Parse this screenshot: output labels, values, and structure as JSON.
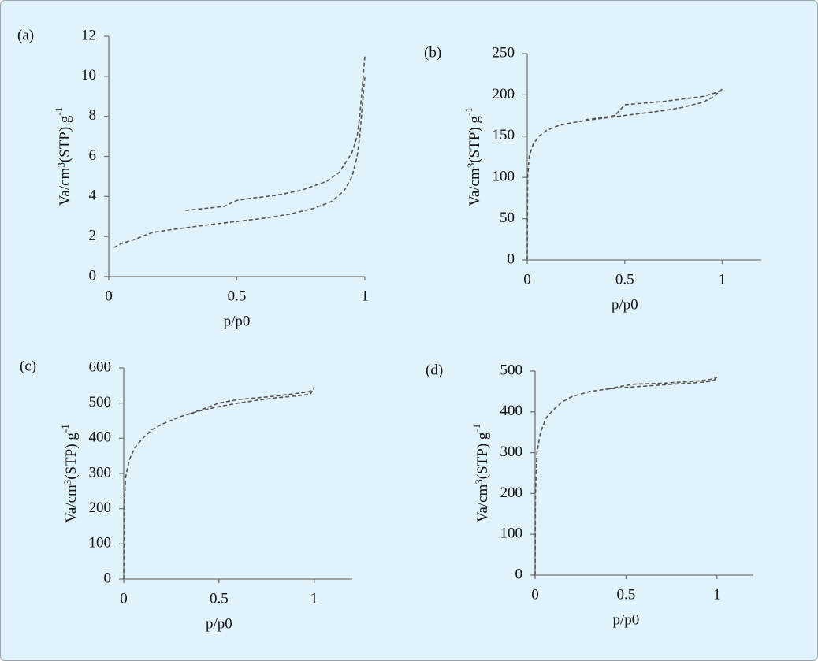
{
  "chart_data": [
    {
      "type": "line",
      "panel_label": "(a)",
      "y_label": [
        "Va/cm",
        "3",
        "(STP) g",
        "-1"
      ],
      "x_label": "p/p0",
      "xlim": [
        0,
        1
      ],
      "xticks": [
        0,
        0.5,
        1
      ],
      "ylim": [
        0,
        12
      ],
      "yticks": [
        0,
        2,
        4,
        6,
        8,
        10,
        12
      ],
      "series": [
        {
          "color": "#555555",
          "x": [
            0.02,
            0.05,
            0.1,
            0.17,
            0.25,
            0.4,
            0.5,
            0.6,
            0.7,
            0.8,
            0.87,
            0.92,
            0.95,
            0.97,
            0.98,
            0.99,
            1.0
          ],
          "values": [
            1.45,
            1.65,
            1.85,
            2.2,
            2.35,
            2.6,
            2.75,
            2.9,
            3.1,
            3.4,
            3.75,
            4.3,
            5.0,
            6.0,
            7.0,
            8.5,
            10
          ]
        },
        {
          "color": "#555555",
          "x": [
            0.3,
            0.45,
            0.5,
            0.55,
            0.65,
            0.75,
            0.85,
            0.9,
            0.95,
            0.97,
            0.98,
            0.99,
            1.0
          ],
          "values": [
            3.3,
            3.5,
            3.8,
            3.9,
            4.05,
            4.3,
            4.75,
            5.2,
            6.2,
            7.0,
            8.0,
            9.5,
            11
          ]
        }
      ]
    },
    {
      "type": "line",
      "panel_label": "(b)",
      "y_label": [
        "Va/cm",
        "3",
        "(STP) g",
        "-1"
      ],
      "x_label": "p/p0",
      "xlim": [
        0,
        1.2
      ],
      "xticks": [
        0,
        0.5,
        1
      ],
      "ylim": [
        0,
        250
      ],
      "yticks": [
        0,
        50,
        100,
        150,
        200,
        250
      ],
      "series": [
        {
          "color": "#555555",
          "x": [
            0,
            0.002,
            0.01,
            0.03,
            0.06,
            0.1,
            0.15,
            0.2,
            0.3,
            0.4,
            0.5,
            0.6,
            0.7,
            0.8,
            0.9,
            0.95,
            1.0
          ],
          "values": [
            0,
            100,
            125,
            140,
            150,
            157,
            162,
            165,
            169,
            172,
            175,
            178,
            181,
            185,
            191,
            197,
            207
          ]
        },
        {
          "color": "#555555",
          "x": [
            0.3,
            0.4,
            0.45,
            0.5,
            0.6,
            0.7,
            0.8,
            0.9,
            1.0
          ],
          "values": [
            170,
            173,
            175,
            188,
            190,
            192,
            195,
            198,
            205
          ]
        }
      ]
    },
    {
      "type": "line",
      "panel_label": "(c)",
      "y_label": [
        "Va/cm",
        "3",
        "(STP) g",
        "-1"
      ],
      "x_label": "p/p0",
      "xlim": [
        0,
        1.2
      ],
      "xticks": [
        0,
        0.5,
        1
      ],
      "ylim": [
        0,
        600
      ],
      "yticks": [
        0,
        100,
        200,
        300,
        400,
        500,
        600
      ],
      "series": [
        {
          "color": "#555555",
          "x": [
            0,
            0.002,
            0.01,
            0.03,
            0.06,
            0.1,
            0.15,
            0.2,
            0.3,
            0.4,
            0.5,
            0.6,
            0.7,
            0.8,
            0.9,
            0.98,
            1.0
          ],
          "values": [
            0,
            200,
            290,
            340,
            375,
            400,
            425,
            440,
            462,
            478,
            490,
            500,
            508,
            515,
            520,
            525,
            545
          ]
        },
        {
          "color": "#555555",
          "x": [
            0.35,
            0.45,
            0.5,
            0.6,
            0.7,
            0.8,
            0.9,
            0.97,
            1.0
          ],
          "values": [
            470,
            490,
            500,
            510,
            515,
            520,
            527,
            532,
            540
          ]
        }
      ]
    },
    {
      "type": "line",
      "panel_label": "(d)",
      "y_label": [
        "Va/cm",
        "3",
        "(STP) g",
        "-1"
      ],
      "x_label": "p/p0",
      "xlim": [
        0,
        1.2
      ],
      "xticks": [
        0,
        0.5,
        1
      ],
      "ylim": [
        0,
        500
      ],
      "yticks": [
        0,
        100,
        200,
        300,
        400,
        500
      ],
      "series": [
        {
          "color": "#555555",
          "x": [
            0,
            0.002,
            0.01,
            0.03,
            0.06,
            0.1,
            0.15,
            0.2,
            0.3,
            0.4,
            0.5,
            0.6,
            0.7,
            0.8,
            0.9,
            0.97,
            1.0
          ],
          "values": [
            0,
            200,
            300,
            350,
            385,
            405,
            425,
            437,
            450,
            456,
            460,
            463,
            466,
            469,
            472,
            475,
            482
          ]
        },
        {
          "color": "#555555",
          "x": [
            0.4,
            0.5,
            0.55,
            0.7,
            0.8,
            0.9,
            0.97,
            1.0
          ],
          "values": [
            456,
            465,
            468,
            470,
            473,
            476,
            480,
            484
          ]
        }
      ]
    }
  ]
}
